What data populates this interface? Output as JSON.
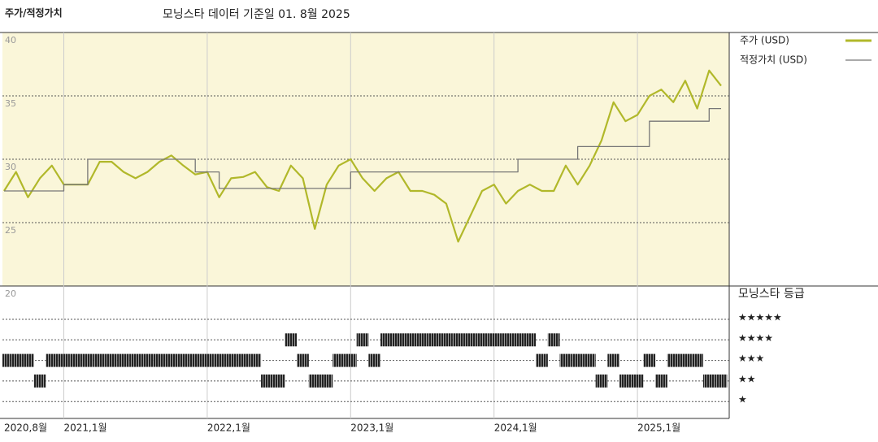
{
  "chart_data": {
    "type": "line",
    "title": "주가/적정가치",
    "subtitle": "모닝스타 데이터 기준일 01. 8월 2025",
    "x": [
      "2020-08",
      "2020-09",
      "2020-10",
      "2020-11",
      "2020-12",
      "2021-01",
      "2021-02",
      "2021-03",
      "2021-04",
      "2021-05",
      "2021-06",
      "2021-07",
      "2021-08",
      "2021-09",
      "2021-10",
      "2021-11",
      "2021-12",
      "2022-01",
      "2022-02",
      "2022-03",
      "2022-04",
      "2022-05",
      "2022-06",
      "2022-07",
      "2022-08",
      "2022-09",
      "2022-10",
      "2022-11",
      "2022-12",
      "2023-01",
      "2023-02",
      "2023-03",
      "2023-04",
      "2023-05",
      "2023-06",
      "2023-07",
      "2023-08",
      "2023-09",
      "2023-10",
      "2023-11",
      "2023-12",
      "2024-01",
      "2024-02",
      "2024-03",
      "2024-04",
      "2024-05",
      "2024-06",
      "2024-07",
      "2024-08",
      "2024-09",
      "2024-10",
      "2024-11",
      "2024-12",
      "2025-01",
      "2025-02",
      "2025-03",
      "2025-04",
      "2025-05",
      "2025-06",
      "2025-07",
      "2025-08"
    ],
    "xticks": [
      {
        "value": "2020-08",
        "label": "2020,8월"
      },
      {
        "value": "2021-01",
        "label": "2021,1월"
      },
      {
        "value": "2022-01",
        "label": "2022,1월"
      },
      {
        "value": "2023-01",
        "label": "2023,1월"
      },
      {
        "value": "2024-01",
        "label": "2024,1월"
      },
      {
        "value": "2025-01",
        "label": "2025,1월"
      }
    ],
    "ylim": [
      20,
      40
    ],
    "yticks": [
      40,
      35,
      30,
      25,
      20
    ],
    "grid": true,
    "background": "#faf6d9",
    "series": [
      {
        "name": "주가 (USD)",
        "color": "#b1b82a",
        "values": [
          27.5,
          29,
          27,
          28.5,
          29.5,
          28,
          28,
          28,
          29.8,
          29.8,
          29,
          28.5,
          29,
          29.8,
          30.3,
          29.5,
          28.8,
          29,
          27,
          28.5,
          28.6,
          29,
          27.8,
          27.5,
          29.5,
          28.5,
          24.5,
          28,
          29.5,
          30,
          28.5,
          27.5,
          28.5,
          29,
          27.5,
          27.5,
          27.2,
          26.5,
          23.5,
          25.5,
          27.5,
          28,
          26.5,
          27.5,
          28,
          27.5,
          27.5,
          29.5,
          28,
          29.5,
          31.5,
          34.5,
          33,
          33.5,
          35,
          35.5,
          34.5,
          36.2,
          34,
          37,
          35.8
        ]
      },
      {
        "name": "적정가치 (USD)",
        "color": "#777777",
        "step": true,
        "values": [
          27.5,
          27.5,
          27.5,
          27.5,
          27.5,
          28,
          28,
          30,
          30,
          30,
          30,
          30,
          30,
          30,
          30,
          30,
          29,
          29,
          27.7,
          27.7,
          27.7,
          27.7,
          27.7,
          27.7,
          27.7,
          27.7,
          27.7,
          27.7,
          27.7,
          29,
          29,
          29,
          29,
          29,
          29,
          29,
          29,
          29,
          29,
          29,
          29,
          29,
          29,
          30,
          30,
          30,
          30,
          30,
          31,
          31,
          31,
          31,
          31,
          31,
          33,
          33,
          33,
          33,
          33,
          34,
          34
        ]
      }
    ],
    "ratings": {
      "name": "모닝스타 등급",
      "ticks": [
        {
          "value": 5,
          "label": "★★★★★"
        },
        {
          "value": 4,
          "label": "★★★★"
        },
        {
          "value": 3,
          "label": "★★★"
        },
        {
          "value": 2,
          "label": "★★"
        },
        {
          "value": 1,
          "label": "★"
        }
      ],
      "values": [
        3,
        3,
        3,
        2,
        3,
        3,
        3,
        3,
        3,
        3,
        3,
        3,
        3,
        3,
        3,
        3,
        3,
        3,
        3,
        3,
        3,
        3,
        2,
        2,
        4,
        3,
        2,
        2,
        3,
        3,
        4,
        3,
        4,
        4,
        4,
        4,
        4,
        4,
        4,
        4,
        4,
        4,
        4,
        4,
        4,
        3,
        4,
        3,
        3,
        3,
        2,
        3,
        2,
        2,
        3,
        2,
        3,
        3,
        3,
        2,
        2
      ]
    }
  }
}
